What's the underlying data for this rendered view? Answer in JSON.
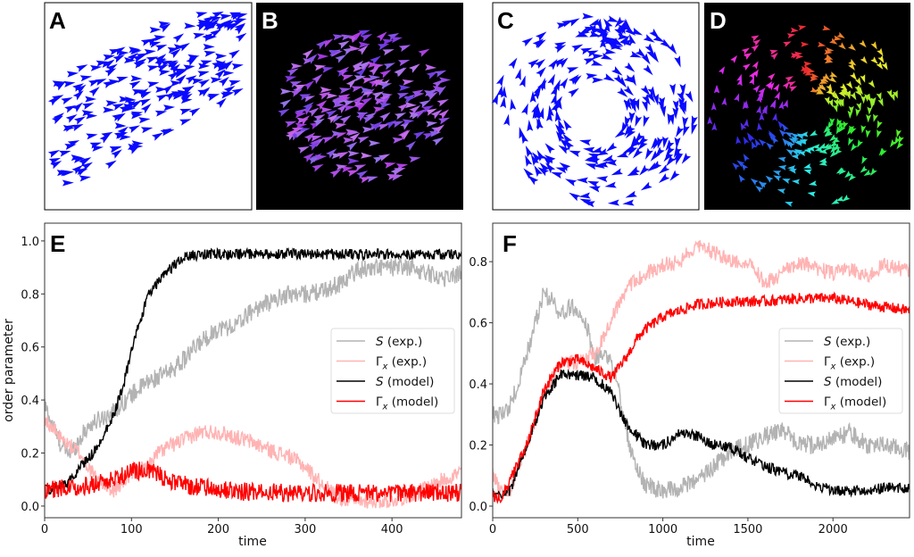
{
  "panels": {
    "A": {
      "label": "A",
      "background": "#ffffff",
      "arrow_color": "#0a0aff",
      "pattern": "flock"
    },
    "B": {
      "label": "B",
      "background": "#000000",
      "arrow_color": "#8a6cf0",
      "pattern": "flock"
    },
    "C": {
      "label": "C",
      "background": "#ffffff",
      "arrow_color": "#0a0aff",
      "pattern": "vortex"
    },
    "D": {
      "label": "D",
      "background": "#000000",
      "arrow_color": "rainbow",
      "pattern": "vortex"
    }
  },
  "chart_data": [
    {
      "id": "E",
      "panel_label": "E",
      "type": "line",
      "xlabel": "time",
      "ylabel": "order parameter",
      "xlim": [
        0,
        480
      ],
      "ylim": [
        -0.044,
        1.067
      ],
      "xticks": [
        "0",
        "100",
        "200",
        "300",
        "400"
      ],
      "xtick_values": [
        0,
        100,
        200,
        300,
        400
      ],
      "yticks": [
        "0.0",
        "0.2",
        "0.4",
        "0.6",
        "0.8",
        "1.0"
      ],
      "ytick_values": [
        0,
        0.2,
        0.4,
        0.6,
        0.8,
        1.0
      ],
      "legend_position": "center-right",
      "series": [
        {
          "name_symbol": "S",
          "name_sub": "",
          "name_rest": " (exp.)",
          "color": "#b3b3b3",
          "noise": 0.035,
          "x": [
            0,
            10,
            20,
            30,
            40,
            50,
            60,
            80,
            100,
            120,
            140,
            160,
            180,
            200,
            220,
            240,
            260,
            280,
            300,
            320,
            340,
            360,
            380,
            400,
            420,
            440,
            460,
            480
          ],
          "y": [
            0.38,
            0.3,
            0.22,
            0.2,
            0.25,
            0.3,
            0.32,
            0.36,
            0.42,
            0.47,
            0.5,
            0.55,
            0.62,
            0.67,
            0.68,
            0.74,
            0.77,
            0.8,
            0.8,
            0.81,
            0.84,
            0.89,
            0.9,
            0.9,
            0.9,
            0.88,
            0.86,
            0.88
          ]
        },
        {
          "name_symbol": "Γ",
          "name_sub": "x",
          "name_rest": " (exp.)",
          "color": "#ffb3b3",
          "noise": 0.03,
          "x": [
            0,
            20,
            40,
            60,
            80,
            100,
            120,
            130,
            140,
            160,
            180,
            200,
            220,
            240,
            260,
            280,
            300,
            320,
            340,
            360,
            400,
            420,
            440,
            460,
            480
          ],
          "y": [
            0.33,
            0.25,
            0.2,
            0.1,
            0.06,
            0.12,
            0.15,
            0.2,
            0.22,
            0.25,
            0.28,
            0.28,
            0.26,
            0.24,
            0.21,
            0.19,
            0.15,
            0.08,
            0.03,
            0.02,
            0.02,
            0.04,
            0.07,
            0.1,
            0.13
          ]
        },
        {
          "name_symbol": "S",
          "name_sub": "",
          "name_rest": " (model)",
          "color": "#000000",
          "noise": 0.02,
          "x": [
            0,
            20,
            30,
            40,
            60,
            80,
            90,
            100,
            110,
            120,
            140,
            160,
            180,
            480
          ],
          "y": [
            0.06,
            0.08,
            0.1,
            0.14,
            0.22,
            0.35,
            0.45,
            0.58,
            0.7,
            0.8,
            0.88,
            0.94,
            0.95,
            0.95
          ]
        },
        {
          "name_symbol": "Γ",
          "name_sub": "x",
          "name_rest": " (model)",
          "color": "#ff0000",
          "noise": 0.035,
          "x": [
            0,
            40,
            80,
            100,
            120,
            140,
            160,
            200,
            250,
            480
          ],
          "y": [
            0.06,
            0.07,
            0.1,
            0.13,
            0.14,
            0.1,
            0.08,
            0.06,
            0.05,
            0.05
          ]
        }
      ]
    },
    {
      "id": "F",
      "panel_label": "F",
      "type": "line",
      "xlabel": "time",
      "ylabel": "",
      "xlim": [
        0,
        2450
      ],
      "ylim": [
        -0.038,
        0.926
      ],
      "xticks": [
        "0",
        "500",
        "1000",
        "1500",
        "2000"
      ],
      "xtick_values": [
        0,
        500,
        1000,
        1500,
        2000
      ],
      "yticks": [
        "0.0",
        "0.2",
        "0.4",
        "0.6",
        "0.8"
      ],
      "ytick_values": [
        0,
        0.2,
        0.4,
        0.6,
        0.8
      ],
      "legend_position": "center-right",
      "series": [
        {
          "name_symbol": "S",
          "name_sub": "",
          "name_rest": " (exp.)",
          "color": "#b3b3b3",
          "noise": 0.03,
          "x": [
            0,
            50,
            100,
            150,
            200,
            250,
            300,
            350,
            400,
            450,
            500,
            550,
            600,
            650,
            700,
            750,
            800,
            850,
            900,
            1000,
            1100,
            1200,
            1300,
            1400,
            1500,
            1600,
            1700,
            1800,
            1900,
            2000,
            2100,
            2200,
            2300,
            2450
          ],
          "y": [
            0.3,
            0.3,
            0.33,
            0.4,
            0.5,
            0.6,
            0.7,
            0.67,
            0.63,
            0.65,
            0.65,
            0.6,
            0.48,
            0.5,
            0.48,
            0.35,
            0.2,
            0.12,
            0.07,
            0.05,
            0.06,
            0.08,
            0.13,
            0.18,
            0.2,
            0.23,
            0.25,
            0.2,
            0.2,
            0.22,
            0.24,
            0.2,
            0.2,
            0.18
          ]
        },
        {
          "name_symbol": "Γ",
          "name_sub": "x",
          "name_rest": " (exp.)",
          "color": "#ffb3b3",
          "noise": 0.025,
          "x": [
            0,
            50,
            100,
            200,
            300,
            400,
            500,
            600,
            650,
            700,
            800,
            900,
            1000,
            1100,
            1200,
            1300,
            1400,
            1500,
            1600,
            1700,
            1800,
            1900,
            2000,
            2100,
            2200,
            2300,
            2450
          ],
          "y": [
            0.1,
            0.05,
            0.05,
            0.2,
            0.37,
            0.47,
            0.47,
            0.5,
            0.55,
            0.62,
            0.72,
            0.76,
            0.79,
            0.8,
            0.86,
            0.83,
            0.8,
            0.8,
            0.73,
            0.76,
            0.8,
            0.78,
            0.76,
            0.78,
            0.75,
            0.79,
            0.77
          ]
        },
        {
          "name_symbol": "S",
          "name_sub": "",
          "name_rest": " (model)",
          "color": "#000000",
          "noise": 0.018,
          "x": [
            0,
            50,
            100,
            200,
            300,
            400,
            500,
            600,
            700,
            750,
            800,
            900,
            1000,
            1100,
            1200,
            1300,
            1400,
            1500,
            1600,
            1700,
            1800,
            1900,
            2000,
            2100,
            2200,
            2300,
            2450
          ],
          "y": [
            0.05,
            0.04,
            0.05,
            0.2,
            0.35,
            0.43,
            0.43,
            0.42,
            0.37,
            0.3,
            0.26,
            0.2,
            0.2,
            0.24,
            0.23,
            0.2,
            0.19,
            0.16,
            0.13,
            0.11,
            0.1,
            0.07,
            0.05,
            0.05,
            0.05,
            0.06,
            0.06
          ]
        },
        {
          "name_symbol": "Γ",
          "name_sub": "x",
          "name_rest": " (model)",
          "color": "#ff0000",
          "noise": 0.018,
          "x": [
            0,
            50,
            100,
            200,
            300,
            400,
            500,
            600,
            700,
            800,
            850,
            900,
            1000,
            1100,
            1200,
            1400,
            1600,
            1800,
            2000,
            2200,
            2450
          ],
          "y": [
            0.03,
            0.03,
            0.08,
            0.2,
            0.38,
            0.47,
            0.48,
            0.45,
            0.42,
            0.5,
            0.55,
            0.58,
            0.62,
            0.64,
            0.66,
            0.67,
            0.67,
            0.68,
            0.68,
            0.66,
            0.64
          ]
        }
      ]
    }
  ]
}
